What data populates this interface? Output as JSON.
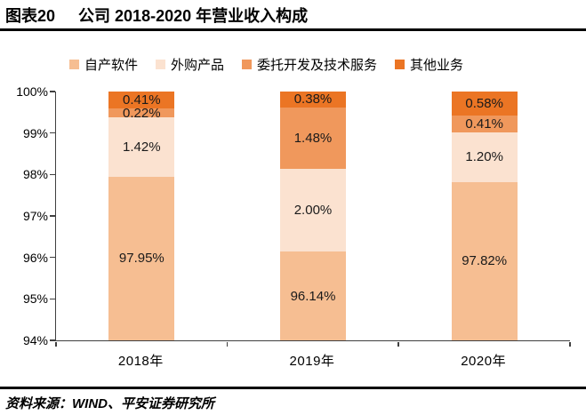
{
  "header": {
    "figure_label": "图表20",
    "title": "公司 2018-2020 年营业收入构成"
  },
  "footer": {
    "source": "资料来源：WIND、平安证券研究所"
  },
  "colors": {
    "self_developed_software": "#F6BE92",
    "purchased_products": "#FBE2D0",
    "commissioned_dev_services": "#F0985C",
    "other_business": "#EB7524",
    "axis": "#3f3f3f",
    "rule": "#000000"
  },
  "chart_data": {
    "type": "bar",
    "stacked": true,
    "title": "公司 2018-2020 年营业收入构成",
    "categories": [
      "2018年",
      "2019年",
      "2020年"
    ],
    "series": [
      {
        "name": "自产软件",
        "color": "#F6BE92",
        "values": [
          97.95,
          96.14,
          97.82
        ]
      },
      {
        "name": "外购产品",
        "color": "#FBE2D0",
        "values": [
          1.42,
          2.0,
          1.2
        ]
      },
      {
        "name": "委托开发及技术服务",
        "color": "#F0985C",
        "values": [
          0.22,
          1.48,
          0.41
        ]
      },
      {
        "name": "其他业务",
        "color": "#EB7524",
        "values": [
          0.41,
          0.38,
          0.58
        ]
      }
    ],
    "value_labels": [
      [
        "97.95%",
        "96.14%",
        "97.82%"
      ],
      [
        "1.42%",
        "2.00%",
        "1.20%"
      ],
      [
        "0.22%",
        "1.48%",
        "0.41%"
      ],
      [
        "0.41%",
        "0.38%",
        "0.58%"
      ]
    ],
    "ylim": [
      94,
      100
    ],
    "y_ticks": [
      "100%",
      "99%",
      "98%",
      "97%",
      "96%",
      "95%",
      "94%"
    ],
    "grid": false,
    "legend_position": "top",
    "xlabel": "",
    "ylabel": ""
  }
}
